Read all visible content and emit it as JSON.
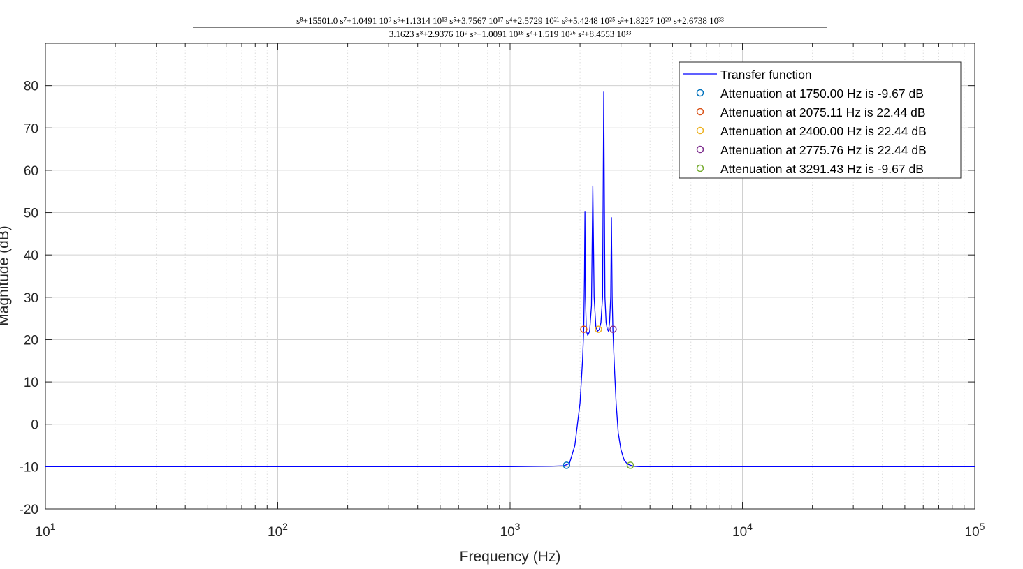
{
  "chart_data": {
    "type": "line",
    "title_numerator": "s⁸+15501.0 s⁷+1.0491 10⁹ s⁶+1.1314 10¹³ s⁵+3.7567 10¹⁷ s⁴+2.5729 10²¹ s³+5.4248 10²⁵ s²+1.8227 10²⁹ s+2.6738 10³³",
    "title_denominator": "3.1623 s⁸+2.9376 10⁹ s⁶+1.0091 10¹⁸ s⁴+1.519 10²⁶ s²+8.4553 10³³",
    "xlabel": "Frequency (Hz)",
    "ylabel": "Magnitude (dB)",
    "xscale": "log",
    "xlim": [
      10,
      100000
    ],
    "ylim": [
      -20,
      90
    ],
    "grid": true,
    "minor_grid": true,
    "legend_position": "top-right",
    "x_tick_bases": [
      "10",
      "10",
      "10",
      "10",
      "10"
    ],
    "x_tick_exps": [
      "1",
      "2",
      "3",
      "4",
      "5"
    ],
    "y_ticks": [
      "-20",
      "-10",
      "0",
      "10",
      "20",
      "30",
      "40",
      "50",
      "60",
      "70",
      "80"
    ],
    "series": [
      {
        "name": "Transfer function",
        "color": "#0000ff",
        "x": [
          10,
          100,
          1000,
          1500,
          1700,
          1800,
          1900,
          2000,
          2050,
          2075,
          2090,
          2100,
          2110,
          2130,
          2160,
          2200,
          2240,
          2270,
          2300,
          2340,
          2380,
          2420,
          2460,
          2500,
          2530,
          2560,
          2590,
          2620,
          2650,
          2680,
          2710,
          2730,
          2750,
          2770,
          2790,
          2820,
          2860,
          2920,
          3000,
          3100,
          3200,
          3300,
          3400,
          3600,
          4000,
          6000,
          10000,
          100000
        ],
        "y": [
          -10,
          -10,
          -10,
          -9.9,
          -9.8,
          -9.3,
          -5,
          5,
          15,
          22.4,
          35,
          50.3,
          30,
          22,
          21,
          22,
          28,
          56.3,
          30,
          23,
          22,
          22.4,
          24,
          30,
          78.5,
          30,
          24,
          22.5,
          22,
          24,
          30,
          48.8,
          30,
          22.4,
          18,
          12,
          5,
          -2,
          -6,
          -8.5,
          -9.4,
          -9.67,
          -9.9,
          -10,
          -10,
          -10,
          -10,
          -10
        ]
      }
    ],
    "markers": [
      {
        "name": "Attenuation at 1750.00 Hz is -9.67 dB",
        "x": 1750,
        "y": -9.67,
        "color": "#0072bd"
      },
      {
        "name": "Attenuation at 2075.11 Hz is 22.44 dB",
        "x": 2075.11,
        "y": 22.44,
        "color": "#d95319"
      },
      {
        "name": "Attenuation at 2400.00 Hz is 22.44 dB",
        "x": 2400,
        "y": 22.44,
        "color": "#edb120"
      },
      {
        "name": "Attenuation at 2775.76 Hz is 22.44 dB",
        "x": 2775.76,
        "y": 22.44,
        "color": "#7e2f8e"
      },
      {
        "name": "Attenuation at 3291.43 Hz is -9.67 dB",
        "x": 3291.43,
        "y": -9.67,
        "color": "#77ac30"
      }
    ]
  }
}
